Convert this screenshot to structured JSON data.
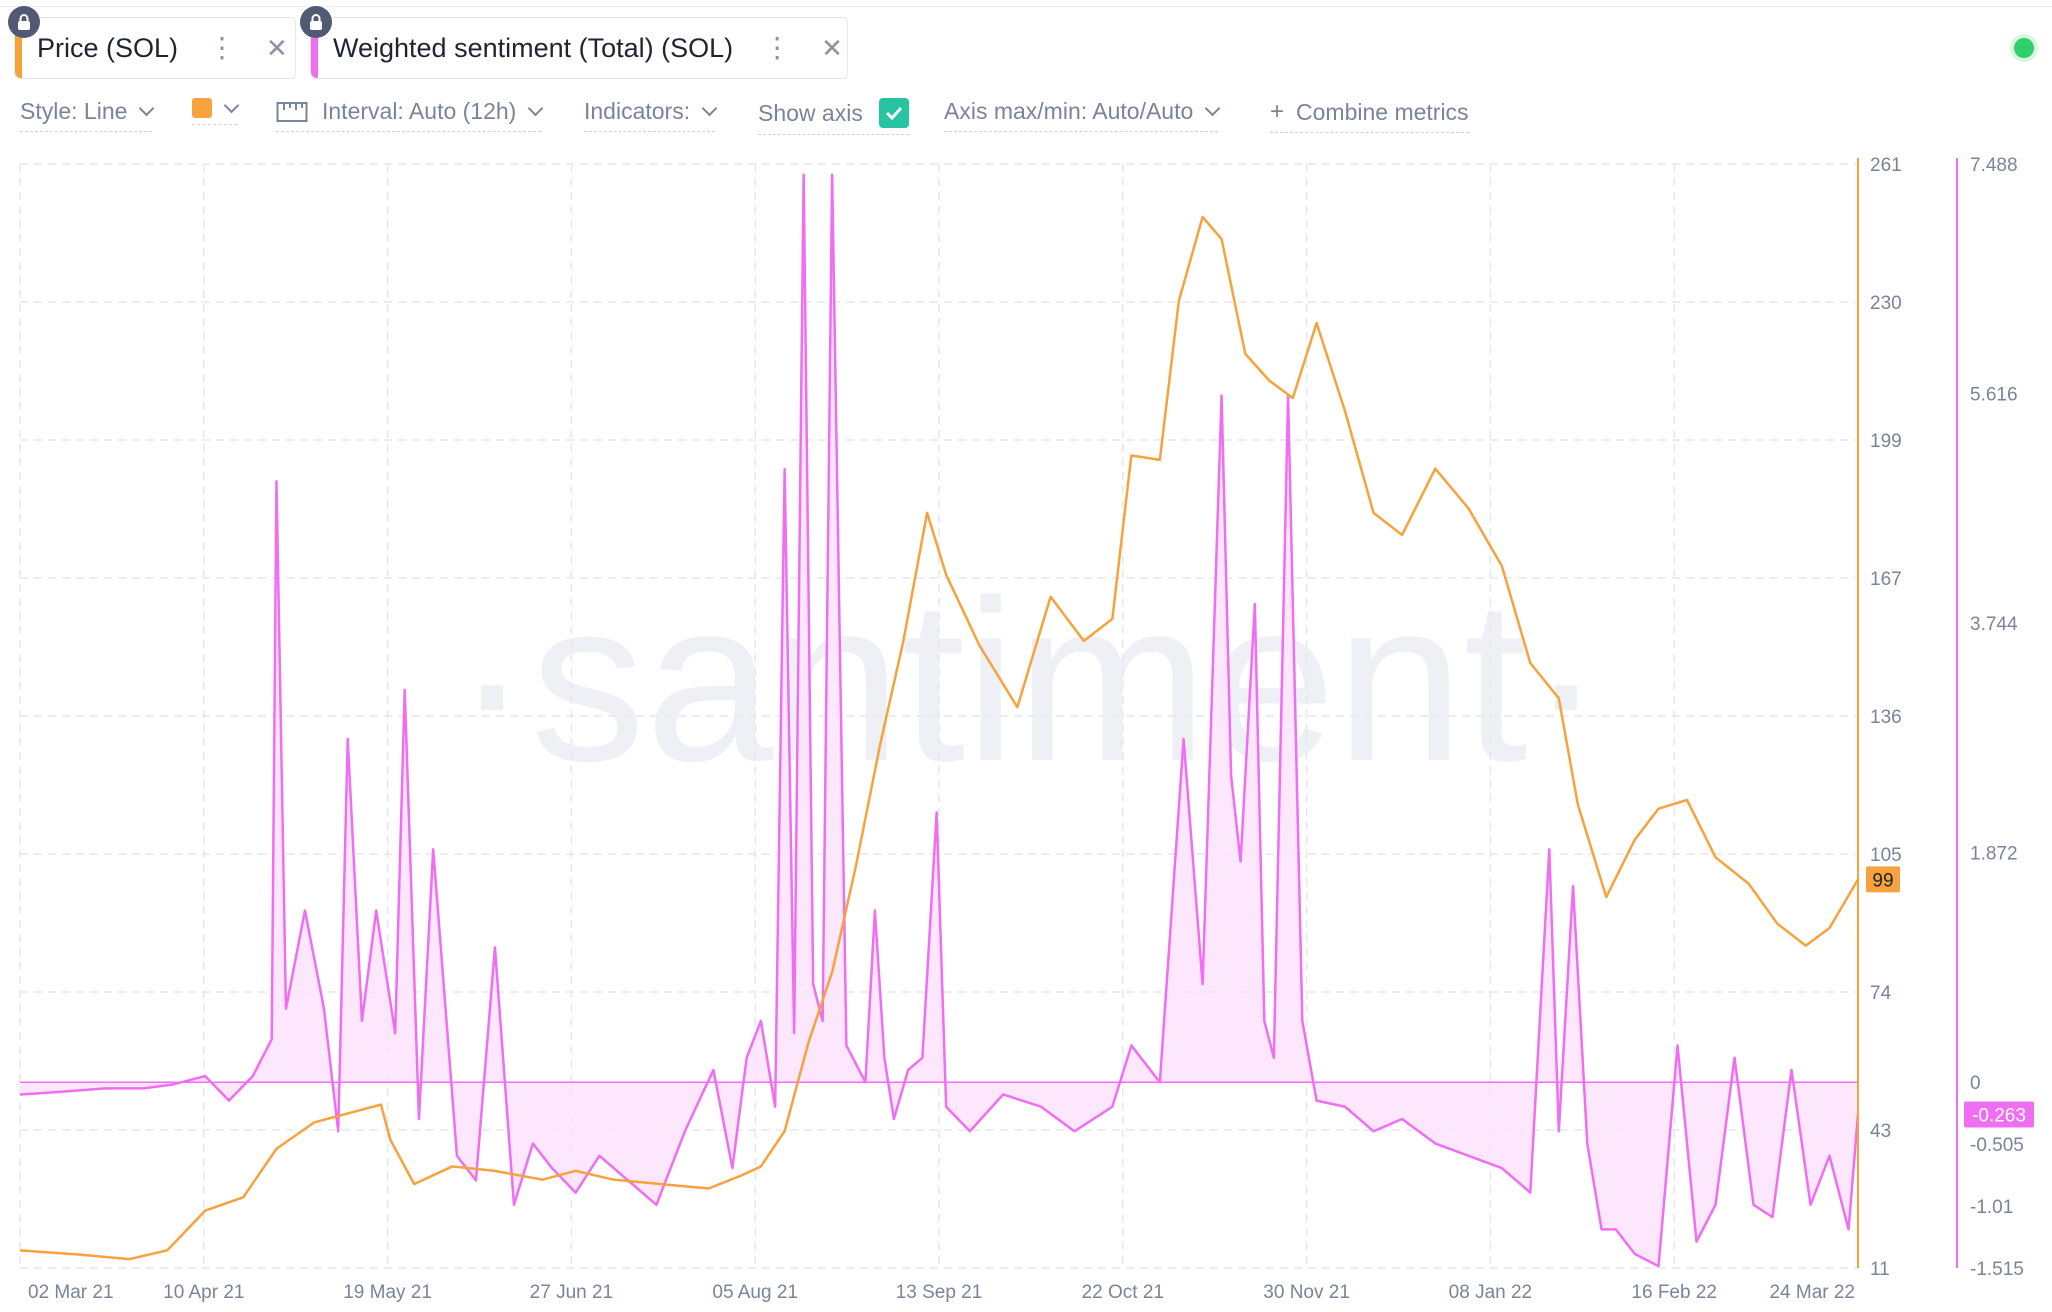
{
  "tabs": [
    {
      "label": "Price (SOL)",
      "color": "#f7a23c"
    },
    {
      "label": "Weighted sentiment (Total) (SOL)",
      "color": "#f06ef2"
    }
  ],
  "toolbar": {
    "style": "Style: Line",
    "swatch_color": "#f7a23c",
    "interval": "Interval: Auto (12h)",
    "indicators": "Indicators:",
    "show_axis": "Show axis",
    "axis_minmax": "Axis max/min: Auto/Auto",
    "combine": "Combine metrics"
  },
  "watermark": "·santiment·",
  "chart_data": {
    "type": "line",
    "x_ticks": [
      "02 Mar 21",
      "10 Apr 21",
      "19 May 21",
      "27 Jun 21",
      "05 Aug 21",
      "13 Sep 21",
      "22 Oct 21",
      "30 Nov 21",
      "08 Jan 22",
      "16 Feb 22",
      "24 Mar 22"
    ],
    "x_range": [
      "2021-03-02",
      "2022-03-24"
    ],
    "grid": true,
    "axes": [
      {
        "side": "right",
        "series": "Price (SOL)",
        "color": "#f7a23c",
        "ticks": [
          "261",
          "230",
          "199",
          "167",
          "136",
          "105",
          "74",
          "43",
          "11"
        ],
        "ylim": [
          11,
          261
        ],
        "current_label": "99",
        "current_value": 99
      },
      {
        "side": "right",
        "series": "Weighted sentiment (Total) (SOL)",
        "color": "#f06ef2",
        "ticks": [
          "7.488",
          "5.616",
          "3.744",
          "1.872",
          "0",
          "-0.505",
          "-1.01",
          "-1.515"
        ],
        "ylim": [
          -1.515,
          7.488
        ],
        "current_label": "-0.263",
        "current_value": -0.263
      }
    ],
    "series": [
      {
        "name": "Price (SOL)",
        "color": "#f7a23c",
        "x": [
          "2021-03-02",
          "2021-03-15",
          "2021-03-25",
          "2021-04-02",
          "2021-04-10",
          "2021-04-18",
          "2021-04-25",
          "2021-05-03",
          "2021-05-10",
          "2021-05-17",
          "2021-05-19",
          "2021-05-24",
          "2021-06-01",
          "2021-06-10",
          "2021-06-20",
          "2021-06-27",
          "2021-07-05",
          "2021-07-15",
          "2021-07-25",
          "2021-08-01",
          "2021-08-05",
          "2021-08-10",
          "2021-08-15",
          "2021-08-20",
          "2021-08-25",
          "2021-08-30",
          "2021-09-04",
          "2021-09-09",
          "2021-09-13",
          "2021-09-20",
          "2021-09-28",
          "2021-10-05",
          "2021-10-12",
          "2021-10-18",
          "2021-10-22",
          "2021-10-28",
          "2021-11-01",
          "2021-11-06",
          "2021-11-10",
          "2021-11-15",
          "2021-11-20",
          "2021-11-25",
          "2021-11-30",
          "2021-12-06",
          "2021-12-12",
          "2021-12-18",
          "2021-12-25",
          "2022-01-01",
          "2022-01-08",
          "2022-01-14",
          "2022-01-20",
          "2022-01-24",
          "2022-01-30",
          "2022-02-05",
          "2022-02-10",
          "2022-02-16",
          "2022-02-22",
          "2022-03-01",
          "2022-03-07",
          "2022-03-13",
          "2022-03-18",
          "2022-03-24"
        ],
        "values": [
          15,
          14,
          13,
          15,
          24,
          27,
          38,
          44,
          46,
          48,
          40,
          30,
          34,
          33,
          31,
          33,
          31,
          30,
          29,
          32,
          34,
          42,
          62,
          78,
          102,
          129,
          153,
          182,
          168,
          152,
          138,
          163,
          153,
          158,
          195,
          194,
          230,
          249,
          244,
          218,
          212,
          208,
          225,
          205,
          182,
          177,
          192,
          183,
          170,
          148,
          140,
          116,
          95,
          108,
          115,
          117,
          104,
          98,
          89,
          84,
          88,
          99
        ]
      },
      {
        "name": "Weighted sentiment (Total) (SOL)",
        "color": "#f06ef2",
        "x": [
          "2021-03-02",
          "2021-03-10",
          "2021-03-20",
          "2021-03-28",
          "2021-04-03",
          "2021-04-10",
          "2021-04-15",
          "2021-04-20",
          "2021-04-24",
          "2021-04-25",
          "2021-04-27",
          "2021-05-01",
          "2021-05-05",
          "2021-05-08",
          "2021-05-10",
          "2021-05-13",
          "2021-05-16",
          "2021-05-20",
          "2021-05-22",
          "2021-05-25",
          "2021-05-28",
          "2021-06-02",
          "2021-06-06",
          "2021-06-10",
          "2021-06-14",
          "2021-06-18",
          "2021-06-22",
          "2021-06-27",
          "2021-07-02",
          "2021-07-08",
          "2021-07-14",
          "2021-07-20",
          "2021-07-26",
          "2021-07-30",
          "2021-08-02",
          "2021-08-05",
          "2021-08-08",
          "2021-08-10",
          "2021-08-12",
          "2021-08-14",
          "2021-08-16",
          "2021-08-18",
          "2021-08-20",
          "2021-08-23",
          "2021-08-27",
          "2021-08-29",
          "2021-08-31",
          "2021-09-02",
          "2021-09-05",
          "2021-09-08",
          "2021-09-11",
          "2021-09-13",
          "2021-09-18",
          "2021-09-25",
          "2021-10-03",
          "2021-10-10",
          "2021-10-18",
          "2021-10-22",
          "2021-10-28",
          "2021-11-02",
          "2021-11-06",
          "2021-11-10",
          "2021-11-12",
          "2021-11-14",
          "2021-11-17",
          "2021-11-19",
          "2021-11-21",
          "2021-11-24",
          "2021-11-27",
          "2021-11-30",
          "2021-12-06",
          "2021-12-12",
          "2021-12-18",
          "2021-12-25",
          "2022-01-01",
          "2022-01-08",
          "2022-01-14",
          "2022-01-18",
          "2022-01-20",
          "2022-01-23",
          "2022-01-26",
          "2022-01-29",
          "2022-02-01",
          "2022-02-05",
          "2022-02-10",
          "2022-02-14",
          "2022-02-18",
          "2022-02-22",
          "2022-02-26",
          "2022-03-02",
          "2022-03-06",
          "2022-03-10",
          "2022-03-14",
          "2022-03-18",
          "2022-03-22",
          "2022-03-24"
        ],
        "values": [
          -0.1,
          -0.08,
          -0.05,
          -0.05,
          -0.02,
          0.05,
          -0.15,
          0.05,
          0.35,
          4.9,
          0.6,
          1.4,
          0.6,
          -0.4,
          2.8,
          0.5,
          1.4,
          0.4,
          3.2,
          -0.3,
          1.9,
          -0.6,
          -0.8,
          1.1,
          -1.0,
          -0.5,
          -0.7,
          -0.9,
          -0.6,
          -0.8,
          -1.0,
          -0.4,
          0.1,
          -0.7,
          0.2,
          0.5,
          -0.2,
          5.0,
          0.4,
          7.4,
          0.8,
          0.5,
          7.4,
          0.3,
          0.0,
          1.4,
          0.2,
          -0.3,
          0.1,
          0.2,
          2.2,
          -0.2,
          -0.4,
          -0.1,
          -0.2,
          -0.4,
          -0.2,
          0.3,
          0.0,
          2.8,
          0.8,
          5.6,
          2.5,
          1.8,
          3.9,
          0.5,
          0.2,
          5.6,
          0.5,
          -0.15,
          -0.2,
          -0.4,
          -0.3,
          -0.5,
          -0.6,
          -0.7,
          -0.9,
          1.9,
          -0.4,
          1.6,
          -0.5,
          -1.2,
          -1.2,
          -1.4,
          -1.5,
          0.3,
          -1.3,
          -1.0,
          0.2,
          -1.0,
          -1.1,
          0.1,
          -1.0,
          -0.6,
          -1.2,
          -0.263
        ]
      }
    ]
  }
}
